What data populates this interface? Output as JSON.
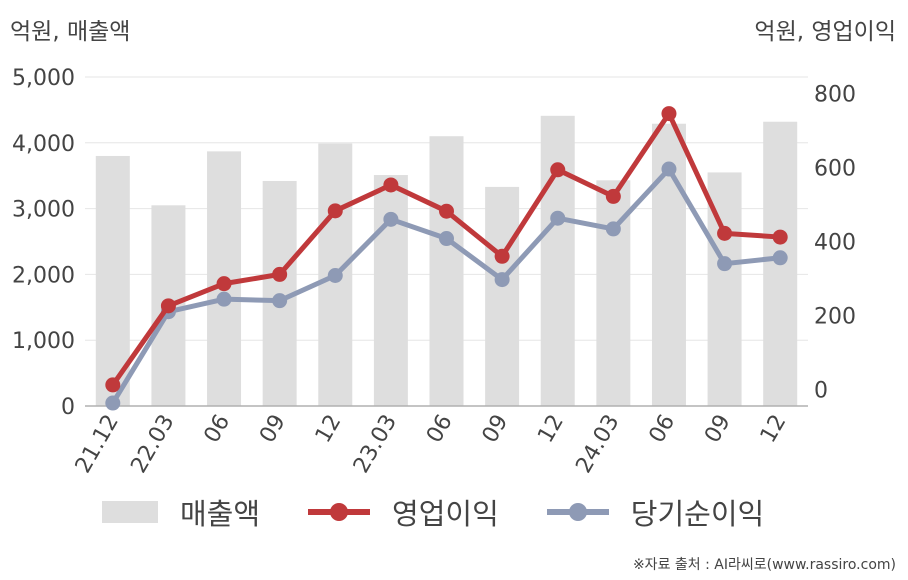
{
  "chart_data": {
    "type": "bar",
    "categories": [
      "21.12",
      "22.03",
      "06",
      "09",
      "12",
      "23.03",
      "06",
      "09",
      "12",
      "24.03",
      "06",
      "09",
      "12"
    ],
    "series": [
      {
        "name": "매출액",
        "type": "bar",
        "axis": "left",
        "color": "#dedede",
        "values": [
          3800,
          3050,
          3870,
          3420,
          3990,
          3510,
          4100,
          3330,
          4410,
          3430,
          4290,
          3550,
          4320
        ]
      },
      {
        "name": "영업이익",
        "type": "line",
        "axis": "right",
        "color": "#c0393b",
        "values": [
          12,
          226,
          286,
          311,
          483,
          553,
          482,
          360,
          594,
          522,
          746,
          422,
          412
        ]
      },
      {
        "name": "당기순이익",
        "type": "line",
        "axis": "right",
        "color": "#8e9ab5",
        "values": [
          -37,
          210,
          244,
          240,
          308,
          460,
          408,
          297,
          463,
          434,
          596,
          340,
          356
        ]
      }
    ],
    "y_left": {
      "unit_label": "억원, 매출액",
      "ylim": [
        0,
        5000
      ],
      "ticks": [
        "5,000",
        "4,000",
        "3,000",
        "2,000",
        "1,000",
        "0"
      ],
      "tick_values": [
        5000,
        4000,
        3000,
        2000,
        1000,
        0
      ]
    },
    "y_right": {
      "unit_label": "억원, 영업이익",
      "ylim": [
        -45,
        845
      ],
      "ticks": [
        "800",
        "600",
        "400",
        "200",
        "0"
      ],
      "tick_values": [
        800,
        600,
        400,
        200,
        0
      ]
    },
    "grid": true,
    "legend_position": "bottom"
  },
  "legend": [
    {
      "label": "매출액",
      "kind": "bar",
      "color": "#dedede"
    },
    {
      "label": "영업이익",
      "kind": "line",
      "color": "#c0393b"
    },
    {
      "label": "당기순이익",
      "kind": "line",
      "color": "#8e9ab5"
    }
  ],
  "source": "※자료 출처 : AI라씨로(www.rassiro.com)"
}
